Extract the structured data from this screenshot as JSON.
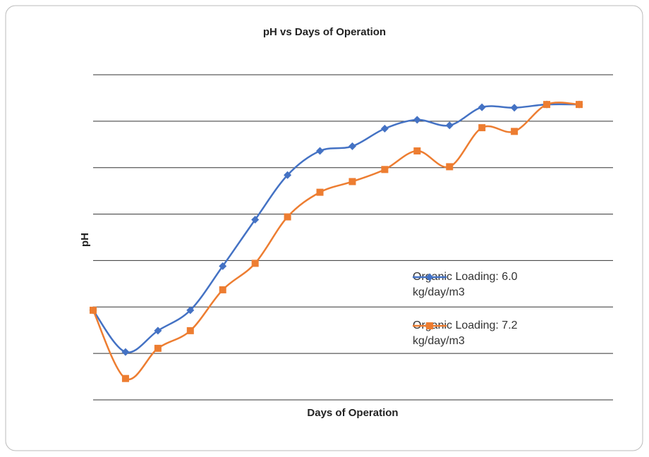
{
  "chart_data": {
    "type": "line",
    "title": "pH vs Days of Operation",
    "x_label": "Days of Operation",
    "y_label": "pH",
    "categories": [
      null,
      null,
      null,
      null,
      null,
      null,
      null,
      null,
      null,
      null,
      null,
      null,
      null,
      null,
      null,
      null
    ],
    "ylim": [
      0,
      7
    ],
    "yticks": [
      0,
      1,
      2,
      3,
      4,
      5,
      6,
      7
    ],
    "grid": true,
    "smooth": true,
    "series": [
      {
        "name": "Organic Loading: 6.0 kg/day/m3",
        "color": "#4472c4",
        "marker": "diamond",
        "values": [
          1.93,
          1.03,
          1.49,
          1.93,
          2.88,
          3.88,
          4.84,
          5.36,
          5.46,
          5.84,
          6.03,
          5.91,
          6.3,
          6.29,
          6.36,
          6.36
        ]
      },
      {
        "name": "Organic Loading: 7.2 kg/day/m3",
        "color": "#ed7d31",
        "marker": "square",
        "values": [
          1.93,
          0.46,
          1.11,
          1.49,
          2.37,
          2.94,
          3.94,
          4.47,
          4.7,
          4.96,
          5.36,
          5.02,
          5.86,
          5.78,
          6.36,
          6.36
        ]
      }
    ]
  }
}
